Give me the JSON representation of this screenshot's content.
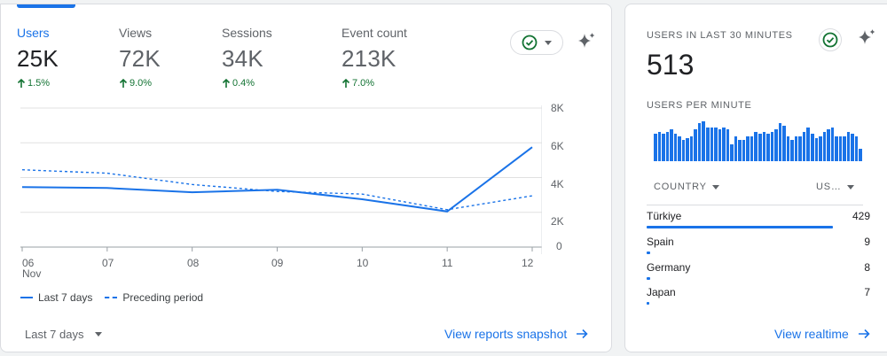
{
  "overview": {
    "metrics": [
      {
        "label": "Users",
        "value": "25K",
        "change": "1.5%",
        "active": true
      },
      {
        "label": "Views",
        "value": "72K",
        "change": "9.0%",
        "active": false
      },
      {
        "label": "Sessions",
        "value": "34K",
        "change": "0.4%",
        "active": false
      },
      {
        "label": "Event count",
        "value": "213K",
        "change": "7.0%",
        "active": false
      }
    ],
    "legend": {
      "current": "Last 7 days",
      "previous": "Preceding period"
    },
    "date_range": "Last 7 days",
    "link": "View reports snapshot"
  },
  "chart_data": {
    "type": "line",
    "x": [
      "06",
      "07",
      "08",
      "09",
      "10",
      "11",
      "12"
    ],
    "x_sublabel": "Nov",
    "ylim": [
      0,
      8000
    ],
    "y_ticks": [
      0,
      2000,
      4000,
      6000,
      8000
    ],
    "y_tick_labels": [
      "0",
      "2K",
      "4K",
      "6K",
      "8K"
    ],
    "series": [
      {
        "name": "Last 7 days",
        "style": "solid",
        "values": [
          3450,
          3400,
          3150,
          3300,
          2750,
          2050,
          5750
        ]
      },
      {
        "name": "Preceding period",
        "style": "dashed",
        "values": [
          4450,
          4250,
          3600,
          3200,
          3050,
          2150,
          2950
        ]
      }
    ],
    "grid": true,
    "legend_position": "bottom-left",
    "color": "#1a73e8"
  },
  "realtime": {
    "title": "USERS IN LAST 30 MINUTES",
    "value": "513",
    "subtitle": "USERS PER MINUTE",
    "per_minute": [
      13,
      14,
      13,
      14,
      15,
      13,
      12,
      10,
      11,
      12,
      15,
      18,
      19,
      16,
      16,
      16,
      15,
      16,
      15,
      8,
      12,
      10,
      10,
      12,
      12,
      14,
      13,
      14,
      13,
      14,
      15,
      18,
      17,
      12,
      10,
      12,
      12,
      14,
      16,
      13,
      11,
      12,
      14,
      15,
      16,
      12,
      12,
      12,
      14,
      13,
      12,
      6
    ],
    "table": {
      "col_country": "COUNTRY",
      "col_users": "US…",
      "rows": [
        {
          "country": "Türkiye",
          "users": "429",
          "share": 1.0
        },
        {
          "country": "Spain",
          "users": "9",
          "share": 0.021
        },
        {
          "country": "Germany",
          "users": "8",
          "share": 0.019
        },
        {
          "country": "Japan",
          "users": "7",
          "share": 0.016
        }
      ]
    },
    "link": "View realtime"
  },
  "colors": {
    "accent": "#1a73e8",
    "positive": "#137333",
    "muted": "#5f6368"
  },
  "icons": [
    "up-arrow-icon",
    "check-circle-icon",
    "chevron-down-icon",
    "sparkle-icon",
    "arrow-right-icon"
  ]
}
